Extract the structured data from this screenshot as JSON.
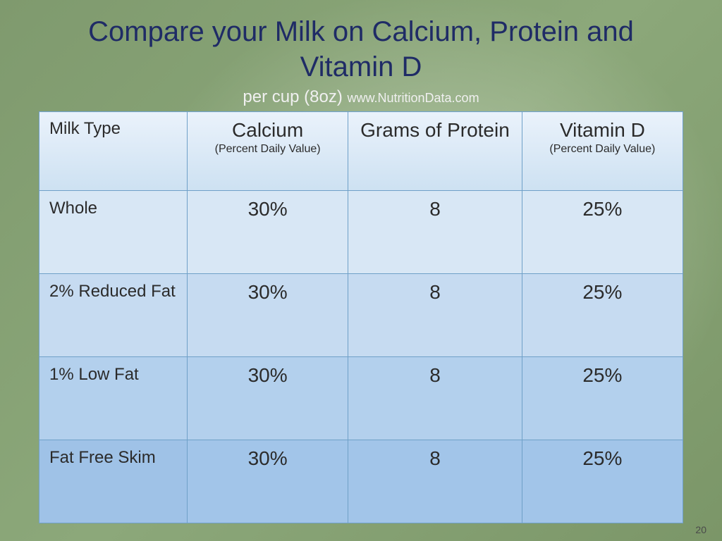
{
  "title": "Compare your Milk on Calcium, Protein and Vitamin D",
  "subtitle_main": "per cup (8oz) ",
  "subtitle_source": "www.NutritionData.com",
  "page_number": "20",
  "table": {
    "type": "table",
    "border_color": "#6fa0c8",
    "header_bg_top": "#eaf2fb",
    "header_bg_bottom": "#cde1f2",
    "row_bg_colors": [
      "#d8e7f5",
      "#c6dbf1",
      "#b3d0ed",
      "#a2c5e9"
    ],
    "title_color": "#1f2b66",
    "title_fontsize_pt": 30,
    "header_fontsize_pt": 21,
    "subheader_fontsize_pt": 12,
    "rowlabel_fontsize_pt": 18,
    "value_fontsize_pt": 21,
    "columns": [
      {
        "label": "Milk Type",
        "sub": ""
      },
      {
        "label": "Calcium",
        "sub": "(Percent Daily Value)"
      },
      {
        "label": "Grams of Protein",
        "sub": ""
      },
      {
        "label": "Vitamin D",
        "sub": "(Percent Daily Value)"
      }
    ],
    "rows": [
      {
        "label": "Whole",
        "calcium": "30%",
        "protein": "8",
        "vitd": "25%"
      },
      {
        "label": "2% Reduced Fat",
        "calcium": "30%",
        "protein": "8",
        "vitd": "25%"
      },
      {
        "label": "1% Low Fat",
        "calcium": "30%",
        "protein": "8",
        "vitd": "25%"
      },
      {
        "label": "Fat Free Skim",
        "calcium": "30%",
        "protein": "8",
        "vitd": "25%"
      }
    ]
  },
  "background": {
    "base_gradient": [
      "#7f9a6e",
      "#8ca87a",
      "#7b9668"
    ],
    "highlight_center": "rgba(255,255,255,0.35)"
  }
}
